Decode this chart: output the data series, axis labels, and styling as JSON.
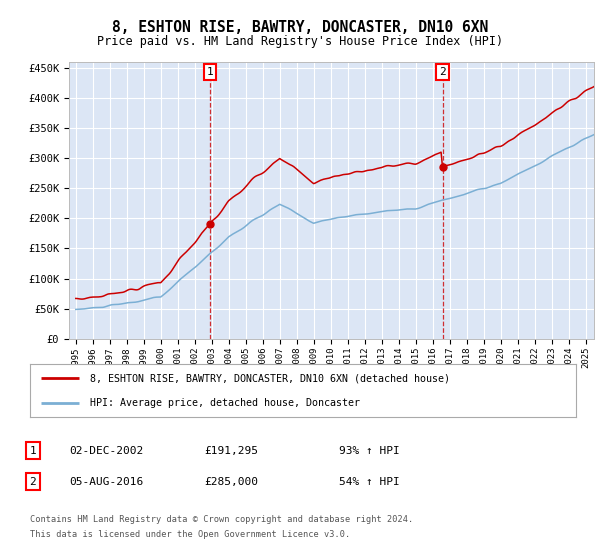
{
  "title": "8, ESHTON RISE, BAWTRY, DONCASTER, DN10 6XN",
  "subtitle": "Price paid vs. HM Land Registry's House Price Index (HPI)",
  "ylim": [
    0,
    460000
  ],
  "yticks": [
    0,
    50000,
    100000,
    150000,
    200000,
    250000,
    300000,
    350000,
    400000,
    450000
  ],
  "ytick_labels": [
    "£0",
    "£50K",
    "£100K",
    "£150K",
    "£200K",
    "£250K",
    "£300K",
    "£350K",
    "£400K",
    "£450K"
  ],
  "bg_color": "#dce6f5",
  "hpi_color": "#7bafd4",
  "price_color": "#cc0000",
  "legend_property": "8, ESHTON RISE, BAWTRY, DONCASTER, DN10 6XN (detached house)",
  "legend_hpi": "HPI: Average price, detached house, Doncaster",
  "note1_label": "1",
  "note1_date": "02-DEC-2002",
  "note1_price": "£191,295",
  "note1_change": "93% ↑ HPI",
  "note2_label": "2",
  "note2_date": "05-AUG-2016",
  "note2_price": "£285,000",
  "note2_change": "54% ↑ HPI",
  "footer": "Contains HM Land Registry data © Crown copyright and database right 2024.\nThis data is licensed under the Open Government Licence v3.0."
}
